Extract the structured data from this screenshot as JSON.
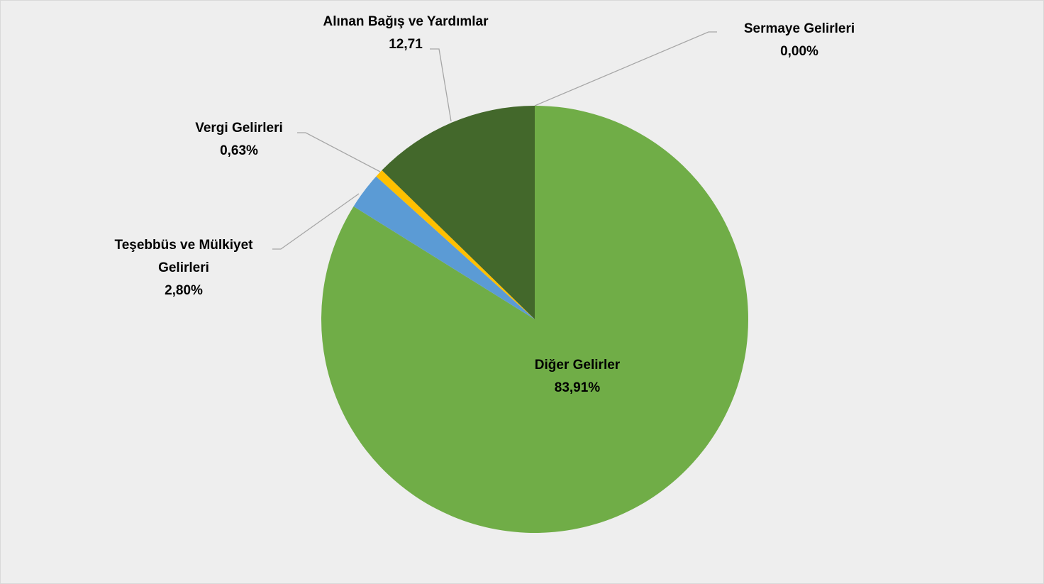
{
  "chart_data": {
    "type": "pie",
    "categories": [
      "Sermaye Gelirleri",
      "Diğer Gelirler",
      "Teşebbüs ve Mülkiyet Gelirleri",
      "Vergi Gelirleri",
      "Alınan Bağış ve Yardımlar"
    ],
    "values": [
      0.0,
      83.91,
      2.8,
      0.63,
      12.71
    ],
    "value_labels": [
      "0,00%",
      "83,91%",
      "2,80%",
      "0,63%",
      "12,71"
    ],
    "colors": [
      "#a5a5a5",
      "#70ad47",
      "#5b9bd5",
      "#ffc000",
      "#43682b"
    ]
  }
}
